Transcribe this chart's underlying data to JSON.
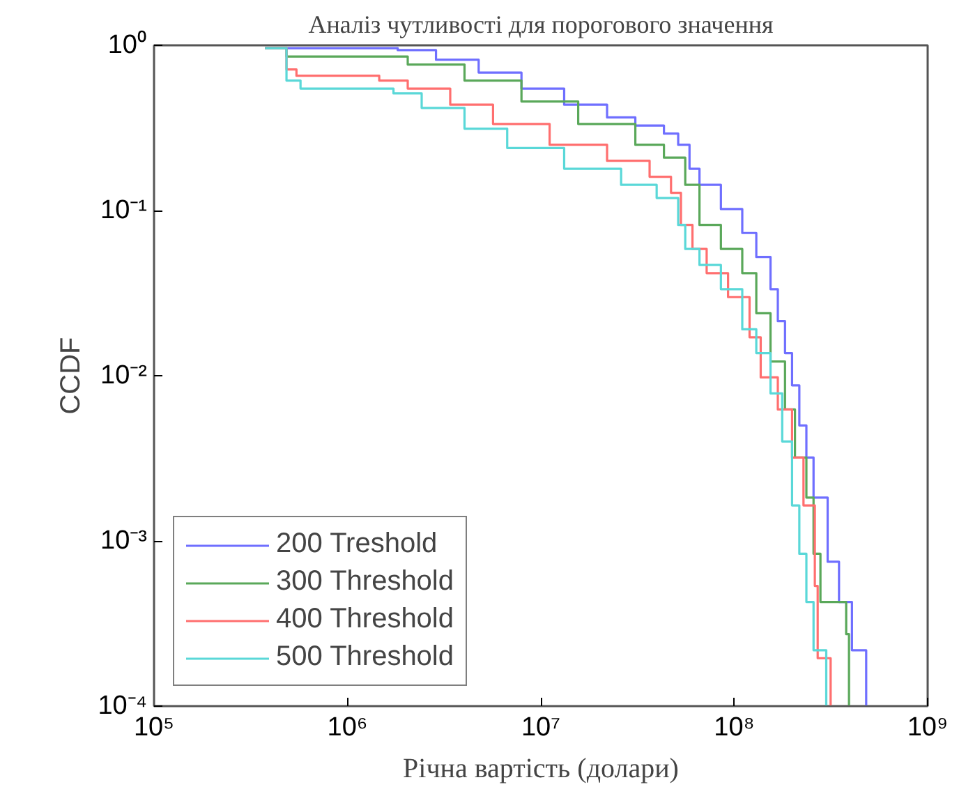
{
  "chart_data": {
    "type": "step",
    "title": "Аналіз чутливості для порогового значення",
    "xlabel": "Річна вартість (долари)",
    "ylabel": "CCDF",
    "log": "xy",
    "grid": false,
    "legend": "bottom left",
    "line_style": "solid",
    "marker": "none",
    "xlim": [
      100000,
      1000000000
    ],
    "ylim": [
      0.0001,
      1
    ],
    "xticks": [
      {
        "value": 100000,
        "label": "10⁵"
      },
      {
        "value": 1000000,
        "label": "10⁶"
      },
      {
        "value": 10000000,
        "label": "10⁷"
      },
      {
        "value": 100000000,
        "label": "10⁸"
      },
      {
        "value": 1000000000,
        "label": "10⁹"
      }
    ],
    "yticks": [
      {
        "value": 0.0001,
        "label": "10⁻⁴"
      },
      {
        "value": 0.001,
        "label": "10⁻³"
      },
      {
        "value": 0.01,
        "label": "10⁻²"
      },
      {
        "value": 0.1,
        "label": "10⁻¹"
      },
      {
        "value": 1,
        "label": "10⁰"
      }
    ],
    "series": [
      {
        "name": "200 Treshold",
        "color": "#6f6fff",
        "x": [
          375000,
          1460000,
          1820000,
          2870000,
          4770000,
          7940000,
          13200000,
          22000000,
          30800000,
          43300000,
          51300000,
          58700000,
          66100000,
          85300000,
          110000000,
          130000000,
          154000000,
          168000000,
          183000000,
          199000000,
          217000000,
          236000000,
          257000000,
          304000000,
          348000000,
          406000000,
          481000000
        ],
        "values": [
          0.96,
          0.96,
          0.935,
          0.818,
          0.684,
          0.547,
          0.437,
          0.366,
          0.327,
          0.292,
          0.25,
          0.179,
          0.143,
          0.102,
          0.0731,
          0.0523,
          0.0334,
          0.0214,
          0.0137,
          0.00874,
          0.005,
          0.0032,
          0.00183,
          0.000748,
          0.000427,
          0.000218,
          0.0001
        ]
      },
      {
        "name": "300 Threshold",
        "color": "#5aa85a",
        "x": [
          375000,
          484000,
          1460000,
          2050000,
          4030000,
          7940000,
          15600000,
          30800000,
          43300000,
          55800000,
          66100000,
          85300000,
          110000000,
          130000000,
          154000000,
          183000000,
          206000000,
          236000000,
          257000000,
          279000000,
          379000000,
          392000000
        ],
        "values": [
          0.96,
          0.855,
          0.855,
          0.765,
          0.612,
          0.457,
          0.334,
          0.25,
          0.209,
          0.143,
          0.0818,
          0.0585,
          0.0418,
          0.0239,
          0.0122,
          0.00625,
          0.0032,
          0.00183,
          0.000836,
          0.000427,
          0.000273,
          0.0001
        ]
      },
      {
        "name": "400 Threshold",
        "color": "#ff6f6f",
        "x": [
          375000,
          484000,
          545000,
          880000,
          1460000,
          2050000,
          3400000,
          5660000,
          11100000,
          22000000,
          36500000,
          47100000,
          53000000,
          60800000,
          72000000,
          92900000,
          120000000,
          137000000,
          168000000,
          199000000,
          228000000,
          261000000,
          270000000,
          315000000
        ],
        "values": [
          0.96,
          0.715,
          0.654,
          0.654,
          0.612,
          0.547,
          0.437,
          0.334,
          0.25,
          0.2,
          0.16,
          0.128,
          0.0818,
          0.0585,
          0.0418,
          0.0299,
          0.0171,
          0.00977,
          0.00625,
          0.0032,
          0.00164,
          0.000534,
          0.000195,
          0.0001
        ]
      },
      {
        "name": "500 Threshold",
        "color": "#5ad8d8",
        "x": [
          375000,
          484000,
          572000,
          1040000,
          1730000,
          2420000,
          4030000,
          6700000,
          13200000,
          26000000,
          39700000,
          51300000,
          55800000,
          66100000,
          85300000,
          110000000,
          130000000,
          154000000,
          177000000,
          199000000,
          217000000,
          236000000,
          257000000,
          299000000
        ],
        "values": [
          0.96,
          0.612,
          0.547,
          0.547,
          0.512,
          0.418,
          0.313,
          0.239,
          0.179,
          0.143,
          0.119,
          0.0818,
          0.0585,
          0.0468,
          0.0334,
          0.0191,
          0.0137,
          0.00782,
          0.004,
          0.00164,
          0.000836,
          0.000427,
          0.000218,
          0.0001
        ]
      }
    ]
  }
}
